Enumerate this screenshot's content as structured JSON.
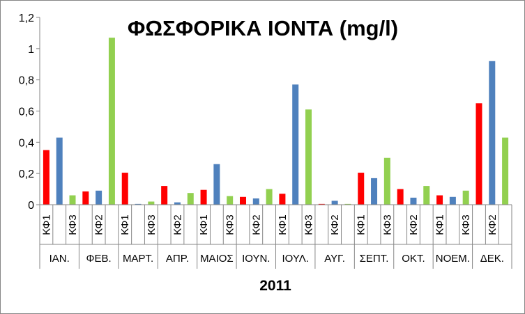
{
  "chart_data": {
    "type": "bar",
    "title": "ΦΩΣΦΟΡΙΚΑ ΙΟΝΤΑ (mg/l)",
    "xlabel": "2011",
    "ylabel": "",
    "ylim": [
      0,
      1.2
    ],
    "y_ticks": [
      "0",
      "0,2",
      "0,4",
      "0,6",
      "0,8",
      "1",
      "1,2"
    ],
    "grid": false,
    "legend": "none",
    "months": [
      "ΙΑΝ.",
      "ΦΕΒ.",
      "ΜΑΡΤ.",
      "ΑΠΡ.",
      "ΜΑΙΟΣ",
      "ΙΟΥΝ.",
      "ΙΟΥΛ.",
      "ΑΥΓ.",
      "ΣΕΠΤ.",
      "ΟΚΤ.",
      "ΝΟΕΜ.",
      "ΔΕΚ."
    ],
    "categories": [
      "ΚΦ1",
      "ΚΦ2",
      "ΚΦ3",
      "ΚΦ1",
      "ΚΦ2",
      "ΚΦ3",
      "ΚΦ1",
      "ΚΦ2",
      "ΚΦ3",
      "ΚΦ1",
      "ΚΦ2",
      "ΚΦ3",
      "ΚΦ1",
      "ΚΦ2",
      "ΚΦ3",
      "ΚΦ1",
      "ΚΦ2",
      "ΚΦ3",
      "ΚΦ1",
      "ΚΦ2",
      "ΚΦ3",
      "ΚΦ1",
      "ΚΦ2",
      "ΚΦ3",
      "ΚΦ1",
      "ΚΦ2",
      "ΚΦ3",
      "ΚΦ1",
      "ΚΦ2",
      "ΚΦ3",
      "ΚΦ1",
      "ΚΦ2",
      "ΚΦ3",
      "ΚΦ1",
      "ΚΦ2",
      "ΚΦ3"
    ],
    "visible_tick_labels": [
      "ΚΦ1",
      "",
      "ΚΦ3",
      "",
      "ΚΦ2",
      "",
      "ΚΦ1",
      "",
      "ΚΦ3",
      "",
      "ΚΦ2",
      "",
      "ΚΦ1",
      "",
      "ΚΦ3",
      "",
      "ΚΦ2",
      "",
      "ΚΦ1",
      "",
      "ΚΦ3",
      "",
      "ΚΦ2",
      "",
      "ΚΦ1",
      "",
      "ΚΦ3",
      "",
      "ΚΦ2",
      "",
      "ΚΦ1",
      "",
      "ΚΦ3",
      "",
      "ΚΦ2",
      ""
    ],
    "values": [
      0.35,
      0.43,
      0.06,
      0.085,
      0.09,
      1.07,
      0.205,
      0.005,
      0.02,
      0.12,
      0.015,
      0.075,
      0.095,
      0.26,
      0.055,
      0.05,
      0.04,
      0.1,
      0.07,
      0.77,
      0.61,
      0.005,
      0.025,
      0.005,
      0.205,
      0.17,
      0.3,
      0.1,
      0.045,
      0.12,
      0.06,
      0.05,
      0.09,
      0.65,
      0.92,
      0.43
    ],
    "bar_colors": [
      "#ff0000",
      "#4f81bd",
      "#92d050"
    ]
  }
}
